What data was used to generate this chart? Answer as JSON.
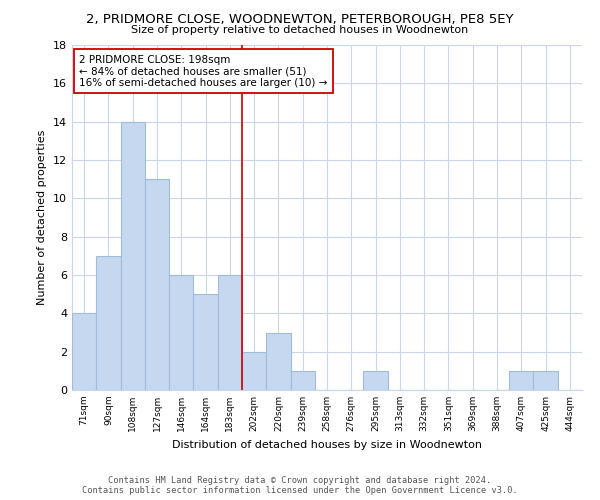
{
  "title_line1": "2, PRIDMORE CLOSE, WOODNEWTON, PETERBOROUGH, PE8 5EY",
  "title_line2": "Size of property relative to detached houses in Woodnewton",
  "xlabel": "Distribution of detached houses by size in Woodnewton",
  "ylabel": "Number of detached properties",
  "bin_labels": [
    "71sqm",
    "90sqm",
    "108sqm",
    "127sqm",
    "146sqm",
    "164sqm",
    "183sqm",
    "202sqm",
    "220sqm",
    "239sqm",
    "258sqm",
    "276sqm",
    "295sqm",
    "313sqm",
    "332sqm",
    "351sqm",
    "369sqm",
    "388sqm",
    "407sqm",
    "425sqm",
    "444sqm"
  ],
  "counts": [
    4,
    7,
    14,
    11,
    6,
    5,
    6,
    2,
    3,
    1,
    0,
    0,
    1,
    0,
    0,
    0,
    0,
    0,
    1,
    1,
    0
  ],
  "bar_color": "#c5d8f0",
  "bar_edge_color": "#a0bcd8",
  "vline_color": "#cc0000",
  "vline_bin_index": 7,
  "annotation_line1": "2 PRIDMORE CLOSE: 198sqm",
  "annotation_line2": "← 84% of detached houses are smaller (51)",
  "annotation_line3": "16% of semi-detached houses are larger (10) →",
  "ylim": [
    0,
    18
  ],
  "yticks": [
    0,
    2,
    4,
    6,
    8,
    10,
    12,
    14,
    16,
    18
  ],
  "footer_line1": "Contains HM Land Registry data © Crown copyright and database right 2024.",
  "footer_line2": "Contains public sector information licensed under the Open Government Licence v3.0.",
  "background_color": "#ffffff",
  "grid_color": "#c8d8e8",
  "figwidth": 6.0,
  "figheight": 5.0,
  "dpi": 100
}
